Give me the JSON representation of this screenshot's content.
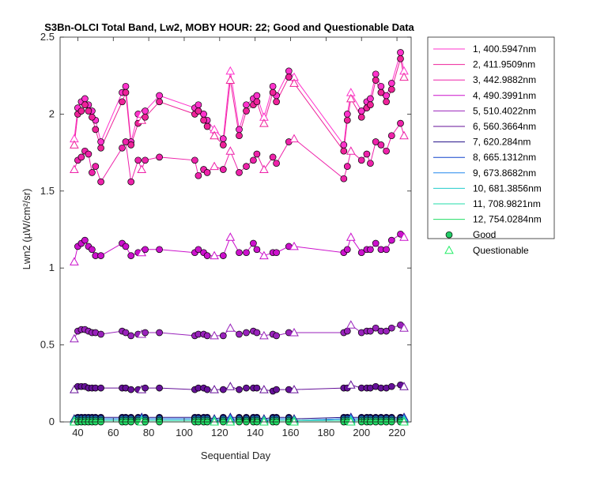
{
  "chart_data": {
    "type": "line",
    "title": "S3Bn-OLCI Total Band, Lw2, MOBY HOUR: 22;  Good and Questionable Data",
    "xlabel": "Sequential Day",
    "ylabel": "Lwn2 (µW/cm²/sr)",
    "xlim": [
      30,
      228
    ],
    "ylim": [
      0,
      2.5
    ],
    "xticks": [
      40,
      60,
      80,
      100,
      120,
      140,
      160,
      180,
      200,
      220
    ],
    "yticks": [
      0,
      0.5,
      1,
      1.5,
      2,
      2.5
    ],
    "ytick_labels": [
      "0",
      "0.5",
      "1",
      "1.5",
      "2",
      "2.5"
    ],
    "grid": false,
    "legend_position": "outside-top-right",
    "x": [
      38,
      40,
      42,
      44,
      46,
      48,
      50,
      53,
      65,
      67,
      70,
      74,
      76,
      78,
      86,
      106,
      108,
      111,
      113,
      117,
      122,
      126,
      131,
      135,
      139,
      141,
      145,
      150,
      152,
      159,
      162,
      190,
      192,
      194,
      200,
      203,
      205,
      208,
      211,
      214,
      217,
      222,
      224
    ],
    "quality": [
      "Q",
      "G",
      "G",
      "G",
      "G",
      "G",
      "G",
      "G",
      "G",
      "G",
      "G",
      "G",
      "Q",
      "G",
      "G",
      "G",
      "G",
      "G",
      "G",
      "Q",
      "G",
      "Q",
      "G",
      "G",
      "G",
      "G",
      "Q",
      "G",
      "G",
      "G",
      "Q",
      "G",
      "G",
      "Q",
      "G",
      "G",
      "G",
      "G",
      "G",
      "G",
      "G",
      "G",
      "Q"
    ],
    "series": [
      {
        "name": "1, 400.5947nm",
        "color": "#ff33cc",
        "values": [
          1.84,
          2.04,
          2.08,
          2.1,
          2.06,
          2.02,
          1.96,
          1.82,
          2.14,
          2.18,
          1.82,
          2.0,
          2.0,
          2.02,
          2.12,
          2.04,
          2.06,
          2.0,
          1.96,
          1.9,
          1.84,
          2.28,
          1.9,
          2.06,
          2.1,
          2.12,
          1.98,
          2.18,
          2.12,
          2.28,
          2.24,
          1.8,
          2.0,
          2.14,
          2.02,
          2.08,
          2.1,
          2.26,
          2.18,
          2.12,
          2.2,
          2.4,
          2.28
        ]
      },
      {
        "name": "2, 411.9509nm",
        "color": "#ee2299",
        "values": [
          1.8,
          2.0,
          2.02,
          2.06,
          2.02,
          1.98,
          1.9,
          1.78,
          2.08,
          2.14,
          1.8,
          1.94,
          1.96,
          1.98,
          2.08,
          2.0,
          2.02,
          1.96,
          1.92,
          1.86,
          1.8,
          2.22,
          1.86,
          2.02,
          2.06,
          2.08,
          1.94,
          2.14,
          2.08,
          2.24,
          2.2,
          1.76,
          1.96,
          2.1,
          1.98,
          2.04,
          2.06,
          2.22,
          2.14,
          2.08,
          2.16,
          2.36,
          2.24
        ]
      },
      {
        "name": "3, 442.9882nm",
        "color": "#ee22aa",
        "values": [
          1.64,
          1.7,
          1.72,
          1.76,
          1.74,
          1.62,
          1.66,
          1.56,
          1.78,
          1.82,
          1.56,
          1.7,
          1.64,
          1.7,
          1.72,
          1.7,
          1.6,
          1.64,
          1.62,
          1.66,
          1.64,
          1.76,
          1.62,
          1.66,
          1.7,
          1.74,
          1.64,
          1.72,
          1.68,
          1.82,
          1.84,
          1.58,
          1.66,
          1.76,
          1.7,
          1.74,
          1.68,
          1.82,
          1.8,
          1.76,
          1.86,
          1.94,
          1.86
        ]
      },
      {
        "name": "4, 490.3991nm",
        "color": "#cc11cc",
        "values": [
          1.04,
          1.14,
          1.16,
          1.18,
          1.14,
          1.12,
          1.08,
          1.08,
          1.16,
          1.14,
          1.08,
          1.1,
          1.1,
          1.12,
          1.12,
          1.1,
          1.12,
          1.1,
          1.08,
          1.08,
          1.08,
          1.2,
          1.1,
          1.1,
          1.16,
          1.12,
          1.08,
          1.1,
          1.1,
          1.14,
          1.14,
          1.1,
          1.12,
          1.2,
          1.1,
          1.12,
          1.12,
          1.16,
          1.12,
          1.12,
          1.18,
          1.22,
          1.2
        ]
      },
      {
        "name": "5, 510.4022nm",
        "color": "#9922bb",
        "values": [
          0.54,
          0.59,
          0.6,
          0.6,
          0.59,
          0.58,
          0.58,
          0.57,
          0.59,
          0.58,
          0.56,
          0.57,
          0.57,
          0.58,
          0.58,
          0.56,
          0.57,
          0.57,
          0.56,
          0.56,
          0.56,
          0.61,
          0.57,
          0.58,
          0.59,
          0.58,
          0.56,
          0.57,
          0.56,
          0.58,
          0.58,
          0.58,
          0.59,
          0.63,
          0.58,
          0.59,
          0.59,
          0.61,
          0.59,
          0.59,
          0.61,
          0.63,
          0.61
        ]
      },
      {
        "name": "6, 560.3664nm",
        "color": "#661199",
        "values": [
          0.21,
          0.23,
          0.23,
          0.23,
          0.22,
          0.22,
          0.22,
          0.22,
          0.22,
          0.22,
          0.21,
          0.21,
          0.21,
          0.22,
          0.22,
          0.21,
          0.22,
          0.22,
          0.21,
          0.21,
          0.21,
          0.23,
          0.21,
          0.22,
          0.22,
          0.22,
          0.21,
          0.2,
          0.21,
          0.21,
          0.21,
          0.22,
          0.22,
          0.24,
          0.22,
          0.22,
          0.22,
          0.23,
          0.22,
          0.22,
          0.23,
          0.24,
          0.23
        ]
      },
      {
        "name": "7,  620.284nm",
        "color": "#221188",
        "values": [
          0.02,
          0.03,
          0.03,
          0.03,
          0.03,
          0.03,
          0.03,
          0.03,
          0.03,
          0.03,
          0.03,
          0.03,
          0.03,
          0.03,
          0.03,
          0.03,
          0.03,
          0.03,
          0.03,
          0.02,
          0.03,
          0.03,
          0.03,
          0.03,
          0.03,
          0.03,
          0.02,
          0.03,
          0.03,
          0.03,
          0.02,
          0.03,
          0.03,
          0.03,
          0.03,
          0.03,
          0.03,
          0.03,
          0.03,
          0.03,
          0.03,
          0.03,
          0.03
        ]
      },
      {
        "name": "8, 665.1312nm",
        "color": "#1144cc",
        "values": [
          0.01,
          0.02,
          0.02,
          0.02,
          0.02,
          0.02,
          0.02,
          0.02,
          0.02,
          0.02,
          0.02,
          0.02,
          0.02,
          0.02,
          0.02,
          0.02,
          0.02,
          0.02,
          0.02,
          0.01,
          0.02,
          0.02,
          0.02,
          0.02,
          0.02,
          0.02,
          0.01,
          0.02,
          0.02,
          0.02,
          0.01,
          0.02,
          0.02,
          0.02,
          0.02,
          0.02,
          0.02,
          0.02,
          0.02,
          0.02,
          0.02,
          0.02,
          0.02
        ]
      },
      {
        "name": "9, 673.8682nm",
        "color": "#2288ee",
        "values": [
          0.01,
          0.02,
          0.02,
          0.02,
          0.02,
          0.02,
          0.02,
          0.02,
          0.02,
          0.02,
          0.02,
          0.02,
          0.02,
          0.02,
          0.02,
          0.02,
          0.02,
          0.02,
          0.02,
          0.01,
          0.02,
          0.02,
          0.02,
          0.02,
          0.02,
          0.02,
          0.01,
          0.02,
          0.02,
          0.02,
          0.01,
          0.02,
          0.02,
          0.02,
          0.02,
          0.02,
          0.02,
          0.02,
          0.02,
          0.02,
          0.02,
          0.02,
          0.02
        ]
      },
      {
        "name": "10, 681.3856nm",
        "color": "#22cccc",
        "values": [
          0.01,
          0.01,
          0.01,
          0.01,
          0.01,
          0.01,
          0.01,
          0.01,
          0.01,
          0.01,
          0.01,
          0.01,
          0.01,
          0.01,
          0.01,
          0.01,
          0.01,
          0.01,
          0.01,
          0.01,
          0.01,
          0.01,
          0.01,
          0.01,
          0.01,
          0.01,
          0.01,
          0.01,
          0.01,
          0.01,
          0.01,
          0.01,
          0.01,
          0.01,
          0.01,
          0.01,
          0.01,
          0.01,
          0.01,
          0.01,
          0.01,
          0.01,
          0.01
        ]
      },
      {
        "name": "11, 708.9821nm",
        "color": "#22ddaa",
        "values": [
          0.01,
          0.01,
          0.01,
          0.01,
          0.01,
          0.01,
          0.01,
          0.01,
          0.01,
          0.01,
          0.01,
          0.01,
          0.01,
          0.01,
          0.01,
          0.01,
          0.01,
          0.01,
          0.01,
          0.01,
          0.01,
          0.01,
          0.01,
          0.01,
          0.01,
          0.01,
          0.01,
          0.01,
          0.01,
          0.01,
          0.01,
          0.01,
          0.01,
          0.01,
          0.01,
          0.01,
          0.01,
          0.01,
          0.01,
          0.01,
          0.01,
          0.01,
          0.01
        ]
      },
      {
        "name": "12, 754.0284nm",
        "color": "#22dd66",
        "values": [
          0.0,
          0.0,
          0.0,
          0.0,
          0.0,
          0.0,
          0.0,
          0.0,
          0.0,
          0.0,
          0.0,
          0.0,
          0.0,
          0.0,
          0.0,
          0.0,
          0.0,
          0.0,
          0.0,
          0.0,
          0.0,
          0.0,
          0.0,
          0.0,
          0.0,
          0.0,
          0.0,
          0.0,
          0.0,
          0.0,
          0.0,
          0.0,
          0.0,
          0.0,
          0.0,
          0.0,
          0.0,
          0.0,
          0.0,
          0.0,
          0.0,
          0.0,
          0.0
        ]
      }
    ],
    "marker_legend": [
      {
        "name": "Good",
        "marker": "circle",
        "color": "#22cc66"
      },
      {
        "name": "Questionable",
        "marker": "triangle",
        "color": "#22ee66"
      }
    ]
  }
}
